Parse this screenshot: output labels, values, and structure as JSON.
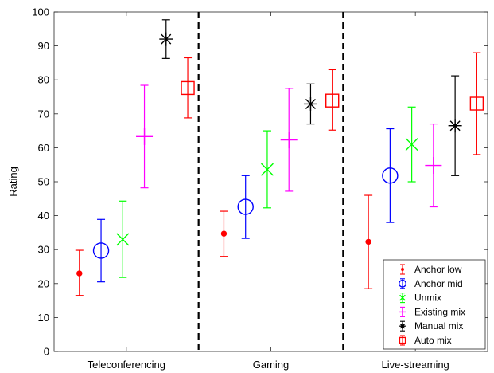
{
  "chart_data": {
    "type": "scatter",
    "ylabel": "Rating",
    "ylim": [
      0,
      100
    ],
    "yticks": [
      0,
      10,
      20,
      30,
      40,
      50,
      60,
      70,
      80,
      90,
      100
    ],
    "grid": false,
    "legend_position": "bottom-right",
    "categories": [
      "Teleconferencing",
      "Gaming",
      "Live-streaming"
    ],
    "series": [
      {
        "name": "Anchor low",
        "color": "#ff0000",
        "marker": "dot",
        "values": [
          23,
          34.7,
          32.3
        ],
        "lower": [
          16.5,
          28,
          18.5
        ],
        "upper": [
          29.8,
          41.3,
          46
        ]
      },
      {
        "name": "Anchor mid",
        "color": "#0000ff",
        "marker": "circle",
        "values": [
          29.7,
          42.6,
          51.8
        ],
        "lower": [
          20.5,
          33.3,
          38
        ],
        "upper": [
          38.9,
          51.8,
          65.6
        ]
      },
      {
        "name": "Unmix",
        "color": "#00ff00",
        "marker": "x",
        "values": [
          33,
          53.6,
          61
        ],
        "lower": [
          21.8,
          42.3,
          50
        ],
        "upper": [
          44.3,
          65,
          72
        ]
      },
      {
        "name": "Existing mix",
        "color": "#ff00ff",
        "marker": "plus",
        "values": [
          63.3,
          62.3,
          54.8
        ],
        "lower": [
          48.2,
          47.2,
          42.6
        ],
        "upper": [
          78.4,
          77.5,
          67
        ]
      },
      {
        "name": "Manual mix",
        "color": "#000000",
        "marker": "star",
        "values": [
          92,
          72.9,
          66.5
        ],
        "lower": [
          86.3,
          67,
          51.8
        ],
        "upper": [
          97.7,
          78.8,
          81.2
        ]
      },
      {
        "name": "Auto mix",
        "color": "#ff0000",
        "marker": "square",
        "values": [
          77.6,
          73.9,
          73
        ],
        "lower": [
          68.8,
          65.2,
          58
        ],
        "upper": [
          86.5,
          83,
          88
        ]
      }
    ]
  }
}
